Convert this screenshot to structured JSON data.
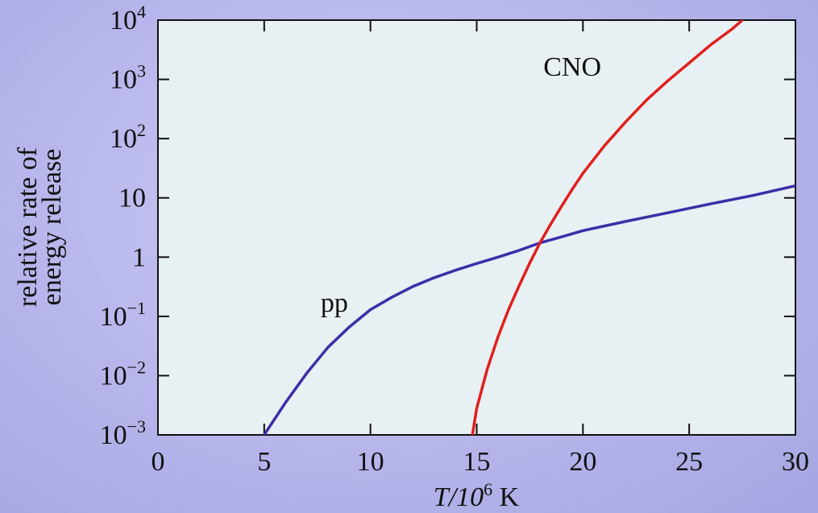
{
  "chart_data": {
    "type": "line",
    "x_axis": {
      "label": "T/10",
      "label_exponent": "6",
      "label_unit": " K",
      "lim": [
        0,
        30
      ],
      "ticks": [
        0,
        5,
        10,
        15,
        20,
        25,
        30
      ],
      "tick_labels": [
        "0",
        "5",
        "10",
        "15",
        "20",
        "25",
        "30"
      ]
    },
    "y_axis": {
      "label_lines": [
        "relative rate of",
        "energy release"
      ],
      "scale": "log",
      "lim": [
        0.001,
        10000
      ],
      "ticks": [
        0.001,
        0.01,
        0.1,
        1,
        10,
        100,
        1000,
        10000
      ],
      "tick_labels": [
        {
          "base": "10",
          "sup": "−3"
        },
        {
          "base": "10",
          "sup": "−2"
        },
        {
          "base": "10",
          "sup": "−1"
        },
        {
          "base": "1",
          "sup": ""
        },
        {
          "base": "10",
          "sup": ""
        },
        {
          "base": "10",
          "sup": "2"
        },
        {
          "base": "10",
          "sup": "3"
        },
        {
          "base": "10",
          "sup": "4"
        }
      ]
    },
    "grid": false,
    "background_color": "#e7f0f3",
    "series": [
      {
        "name": "pp",
        "color": "#3d2ea8",
        "x": [
          5,
          6,
          7,
          8,
          9,
          10,
          11,
          12,
          13,
          14,
          15,
          16,
          17,
          18,
          19,
          20,
          22,
          24,
          26,
          28,
          30
        ],
        "y": [
          0.001,
          0.0035,
          0.011,
          0.03,
          0.066,
          0.13,
          0.21,
          0.32,
          0.45,
          0.6,
          0.78,
          1.0,
          1.3,
          1.75,
          2.2,
          2.8,
          4.0,
          5.6,
          7.9,
          11,
          16
        ]
      },
      {
        "name": "CNO",
        "color": "#e0201c",
        "x": [
          14.8,
          15,
          15.5,
          16,
          16.5,
          17,
          17.5,
          18,
          18.5,
          19,
          19.5,
          20,
          21,
          22,
          23,
          24,
          25,
          26,
          27,
          27.5
        ],
        "y": [
          0.001,
          0.0028,
          0.013,
          0.045,
          0.13,
          0.33,
          0.8,
          1.8,
          3.7,
          7.3,
          14,
          26,
          75,
          190,
          450,
          950,
          1900,
          3800,
          7000,
          10000
        ]
      }
    ],
    "annotations": [
      {
        "series": "pp",
        "text": "pp",
        "x": 8.3,
        "y": 0.12
      },
      {
        "series": "CNO",
        "text": "CNO",
        "x": 19.5,
        "y": 1150
      }
    ]
  }
}
